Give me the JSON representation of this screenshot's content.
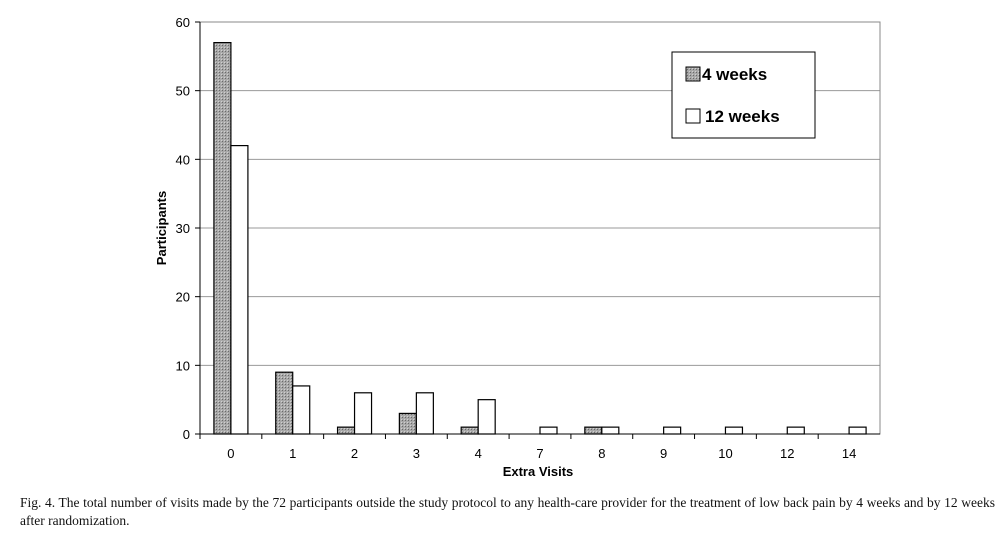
{
  "chart_data": {
    "type": "bar",
    "categories": [
      "0",
      "1",
      "2",
      "3",
      "4",
      "7",
      "8",
      "9",
      "10",
      "12",
      "14"
    ],
    "series": [
      {
        "name": "4 weeks",
        "values": [
          57,
          9,
          1,
          3,
          1,
          0,
          1,
          0,
          0,
          0,
          0
        ],
        "color": "#9a9a9a"
      },
      {
        "name": "12 weeks",
        "values": [
          42,
          7,
          6,
          6,
          5,
          1,
          1,
          1,
          1,
          1,
          1
        ],
        "color": "#ffffff"
      }
    ],
    "xlabel": "Extra Visits",
    "ylabel": "Participants",
    "ylim": [
      0,
      60
    ],
    "yticks": [
      0,
      10,
      20,
      30,
      40,
      50,
      60
    ],
    "grid": true,
    "legend": "top-right"
  },
  "caption": "Fig. 4. The total number of visits made by the 72 participants outside the study protocol to any health-care provider for the treatment of low back pain by 4 weeks and by 12 weeks after randomization."
}
